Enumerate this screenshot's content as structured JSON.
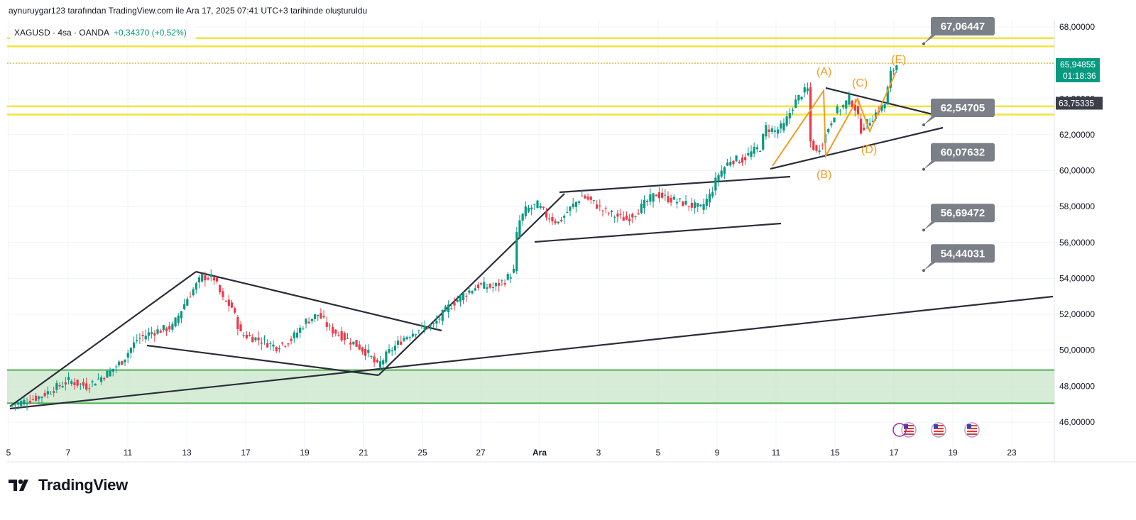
{
  "header": {
    "attribution": "aynuruygar123 tarafından TradingView.com ile Ara 17, 2025 07:41 UTC+3 tarihinde oluşturuldu"
  },
  "legend": {
    "symbol": "XAGUSD · 4sa · OANDA",
    "change": "+0,34370 (+0,52%)"
  },
  "brand": {
    "name": "TradingView"
  },
  "colors": {
    "up": "#089981",
    "down": "#f23645",
    "zone": "#4caf50",
    "zone_fill": "#c8e6c9",
    "yellow_line": "#f5e33b",
    "callout_bg": "#7b7f87",
    "current_price_bg": "#089981",
    "dark_badge_bg": "#3b3f48",
    "wave": "#f39c1e",
    "trendline": "#2a2e39"
  },
  "chart_data": {
    "type": "candlestick",
    "symbol": "XAGUSD",
    "interval": "4sa",
    "source": "OANDA",
    "y_axis": {
      "ticks": [
        "68,00000",
        "66,00000",
        "64,00000",
        "62,00000",
        "60,00000",
        "58,00000",
        "56,00000",
        "54,00000",
        "52,00000",
        "50,00000",
        "48,00000",
        "46,00000"
      ],
      "tick_values": [
        68,
        66,
        64,
        62,
        60,
        58,
        56,
        54,
        52,
        50,
        48,
        46
      ],
      "range": [
        45.4,
        69.3
      ],
      "position": "right"
    },
    "x_axis": {
      "labels": [
        "5",
        "7",
        "11",
        "13",
        "17",
        "19",
        "21",
        "25",
        "27",
        "Ara",
        "3",
        "5",
        "9",
        "11",
        "15",
        "17",
        "19",
        "23"
      ]
    },
    "current_price": {
      "value": "65,94855",
      "countdown": "01:18:36",
      "numeric": 65.94855
    },
    "marker_price": {
      "value": "63,75335",
      "numeric": 63.75335
    },
    "horizontal_lines": [
      67.38,
      66.92,
      65.98,
      63.58,
      63.12
    ],
    "support_zone": {
      "top": 48.9,
      "bottom": 47.05
    },
    "targets": [
      {
        "label": "67,06447",
        "value": 67.06447
      },
      {
        "label": "62,54705",
        "value": 62.54705
      },
      {
        "label": "60,07632",
        "value": 60.07632
      },
      {
        "label": "56,69472",
        "value": 56.69472
      },
      {
        "label": "54,44031",
        "value": 54.44031
      }
    ],
    "wave_labels": [
      "(A)",
      "(B)",
      "(C)",
      "(D)",
      "(E)"
    ],
    "close_path": [
      [
        0,
        46.9
      ],
      [
        10,
        47.4
      ],
      [
        20,
        48.3
      ],
      [
        26,
        48.0
      ],
      [
        33,
        48.7
      ],
      [
        38,
        49.4
      ],
      [
        43,
        50.6
      ],
      [
        48,
        51.0
      ],
      [
        55,
        51.3
      ],
      [
        60,
        52.9
      ],
      [
        65,
        54.1
      ],
      [
        69,
        54.0
      ],
      [
        72,
        52.8
      ],
      [
        75,
        52.4
      ],
      [
        78,
        50.9
      ],
      [
        84,
        50.6
      ],
      [
        90,
        50.2
      ],
      [
        95,
        50.6
      ],
      [
        100,
        51.6
      ],
      [
        104,
        52.0
      ],
      [
        108,
        51.2
      ],
      [
        113,
        50.7
      ],
      [
        117,
        50.3
      ],
      [
        121,
        49.8
      ],
      [
        124,
        49.1
      ],
      [
        128,
        49.9
      ],
      [
        133,
        50.7
      ],
      [
        138,
        51.2
      ],
      [
        143,
        51.4
      ],
      [
        148,
        52.4
      ],
      [
        153,
        53.1
      ],
      [
        158,
        53.6
      ],
      [
        163,
        53.5
      ],
      [
        167,
        53.9
      ],
      [
        170,
        54.4
      ],
      [
        171,
        56.4
      ],
      [
        172,
        57.2
      ],
      [
        174,
        57.8
      ],
      [
        178,
        58.1
      ],
      [
        181,
        57.5
      ],
      [
        185,
        57.1
      ],
      [
        189,
        57.9
      ],
      [
        193,
        58.6
      ],
      [
        197,
        58.2
      ],
      [
        200,
        57.8
      ],
      [
        204,
        57.5
      ],
      [
        208,
        57.3
      ],
      [
        212,
        57.8
      ],
      [
        215,
        58.3
      ],
      [
        218,
        58.7
      ],
      [
        221,
        58.5
      ],
      [
        225,
        58.3
      ],
      [
        229,
        58.1
      ],
      [
        233,
        57.9
      ],
      [
        236,
        58.6
      ],
      [
        239,
        59.8
      ],
      [
        243,
        60.6
      ],
      [
        247,
        60.6
      ],
      [
        250,
        61.0
      ],
      [
        253,
        61.3
      ],
      [
        255,
        62.4
      ],
      [
        258,
        62.2
      ],
      [
        261,
        62.5
      ],
      [
        264,
        63.6
      ],
      [
        267,
        64.3
      ],
      [
        269,
        64.5
      ],
      [
        270,
        61.6
      ],
      [
        272,
        61.0
      ],
      [
        275,
        62.0
      ],
      [
        278,
        63.2
      ],
      [
        281,
        63.6
      ],
      [
        283,
        64.0
      ],
      [
        285,
        63.5
      ],
      [
        287,
        62.3
      ],
      [
        290,
        62.8
      ],
      [
        293,
        63.4
      ],
      [
        295,
        63.7
      ],
      [
        297,
        65.4
      ],
      [
        299,
        65.9
      ]
    ]
  }
}
